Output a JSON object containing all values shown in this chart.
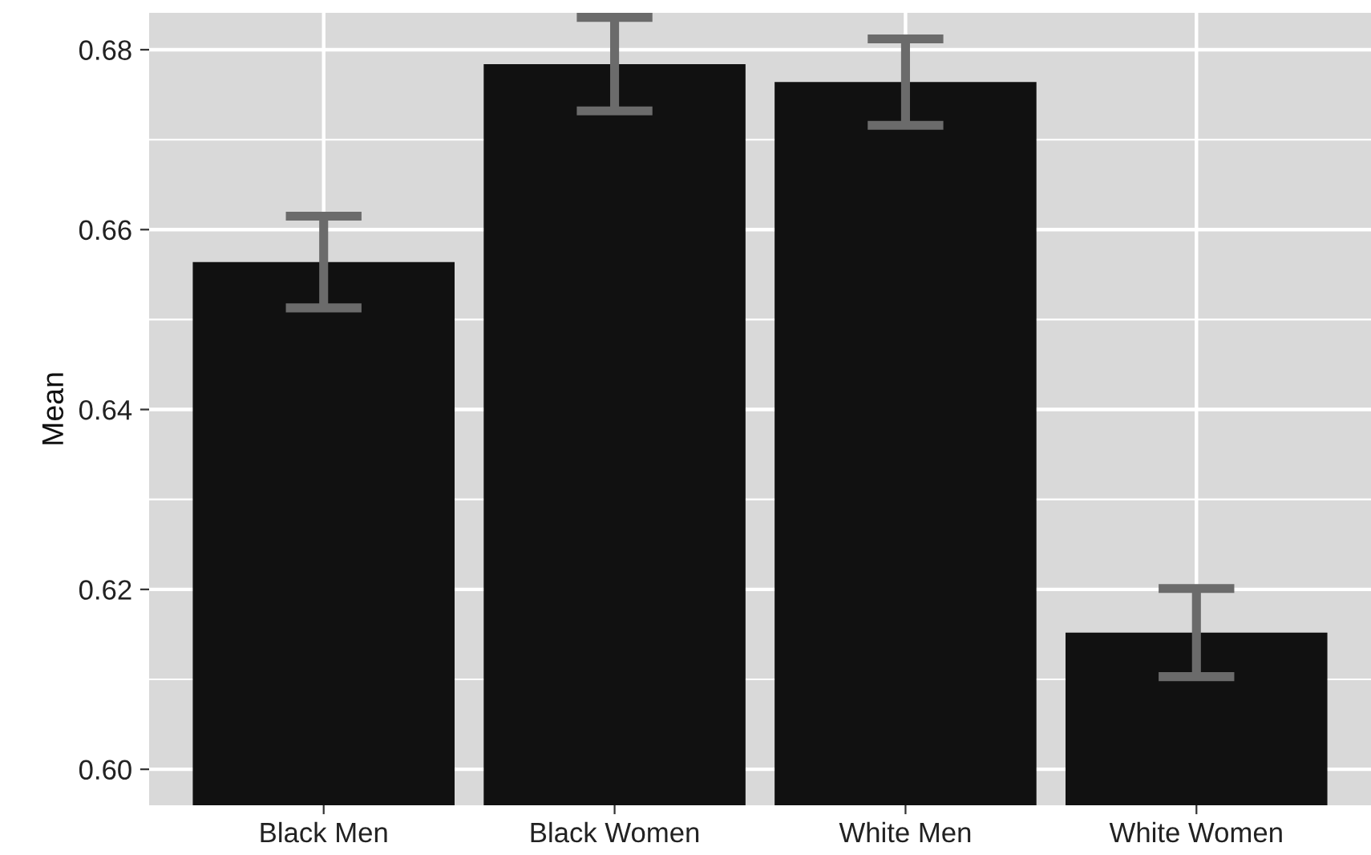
{
  "chart_data": {
    "type": "bar",
    "ylabel": "Mean",
    "categories": [
      "Black Men",
      "Black Women",
      "White Men",
      "White Women"
    ],
    "color": "#111111",
    "values": [
      0.6564,
      0.6784,
      0.6764,
      0.6152
    ],
    "errors": [
      0.0051,
      0.0052,
      0.0048,
      0.0049
    ],
    "ylim": [
      0.596,
      0.6841
    ],
    "yticks": [
      {
        "value": 0.6,
        "label": "0.60"
      },
      {
        "value": 0.62,
        "label": "0.62"
      },
      {
        "value": 0.64,
        "label": "0.64"
      },
      {
        "value": 0.66,
        "label": "0.66"
      },
      {
        "value": 0.68,
        "label": "0.68"
      }
    ],
    "grid": true,
    "legend": false
  }
}
